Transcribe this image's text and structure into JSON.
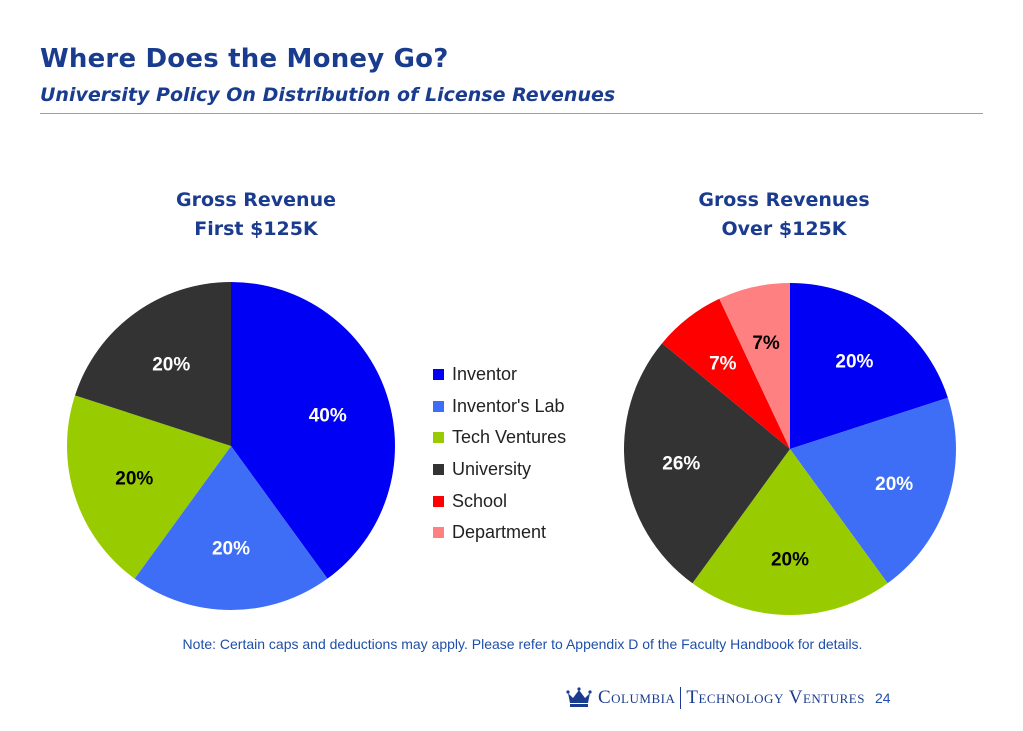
{
  "header": {
    "title": "Where Does the Money Go?",
    "subtitle": "University Policy On Distribution of License Revenues"
  },
  "chart_data": [
    {
      "type": "pie",
      "title": [
        "Gross Revenue",
        "First $125K"
      ],
      "slices": [
        {
          "name": "Inventor",
          "value": 40,
          "label": "40%",
          "color": "#0000f5",
          "label_color": "#ffffff"
        },
        {
          "name": "Inventor's Lab",
          "value": 20,
          "label": "20%",
          "color": "#3d6ef5",
          "label_color": "#ffffff"
        },
        {
          "name": "Tech Ventures",
          "value": 20,
          "label": "20%",
          "color": "#99cc00",
          "label_color": "#000000"
        },
        {
          "name": "University",
          "value": 20,
          "label": "20%",
          "color": "#333333",
          "label_color": "#ffffff"
        }
      ]
    },
    {
      "type": "pie",
      "title": [
        "Gross Revenues",
        "Over $125K"
      ],
      "slices": [
        {
          "name": "Inventor",
          "value": 20,
          "label": "20%",
          "color": "#0000f5",
          "label_color": "#ffffff"
        },
        {
          "name": "Inventor's Lab",
          "value": 20,
          "label": "20%",
          "color": "#3d6ef5",
          "label_color": "#ffffff"
        },
        {
          "name": "Tech Ventures",
          "value": 20,
          "label": "20%",
          "color": "#99cc00",
          "label_color": "#000000"
        },
        {
          "name": "University",
          "value": 26,
          "label": "26%",
          "color": "#333333",
          "label_color": "#ffffff"
        },
        {
          "name": "School",
          "value": 7,
          "label": "7%",
          "color": "#ff0000",
          "label_color": "#ffffff"
        },
        {
          "name": "Department",
          "value": 7,
          "label": "7%",
          "color": "#ff8080",
          "label_color": "#000000"
        }
      ]
    }
  ],
  "legend": {
    "items": [
      {
        "label": "Inventor",
        "color": "#0000f5"
      },
      {
        "label": "Inventor's Lab",
        "color": "#3d6ef5"
      },
      {
        "label": "Tech Ventures",
        "color": "#99cc00"
      },
      {
        "label": "University",
        "color": "#333333"
      },
      {
        "label": "School",
        "color": "#ff0000"
      },
      {
        "label": "Department",
        "color": "#ff8080"
      }
    ]
  },
  "note": "Note: Certain caps and deductions  may apply.  Please refer to Appendix D of the Faculty Handbook for details.",
  "footer": {
    "brand_left": "Columbia",
    "brand_right": "Technology Ventures",
    "page_number": "24",
    "logo_icon": "crown-icon"
  }
}
